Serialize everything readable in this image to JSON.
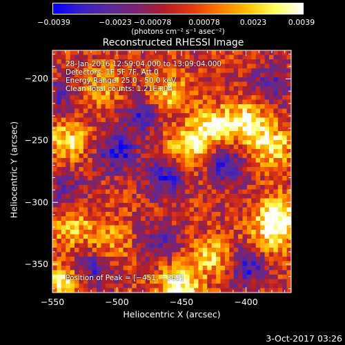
{
  "title": "Reconstructed RHESSI Image",
  "colorbar": {
    "ticks": [
      "−0.0039",
      "−0.0023",
      "−0.00078",
      "0.00078",
      "0.0023",
      "0.0039"
    ],
    "unit": "(photons cm⁻² s⁻¹ asec⁻²)"
  },
  "annotations": {
    "time_range": "28-Jan-2016 12:59:04.000 to 13:09:04.000",
    "detectors": "Detectors: 1F 5F 7F, Att 0",
    "energy": "Energy Range: 25.0 - 50.0 keV",
    "clean": "Clean    Total counts: 1.21E+04",
    "peak": "Position of Peak = [−451, −362]"
  },
  "timestamp": "3-Oct-2017 03:26",
  "chart_data": {
    "type": "heatmap",
    "title": "Reconstructed RHESSI Image",
    "xlabel": "Heliocentric X (arcsec)",
    "ylabel": "Heliocentric Y (arcsec)",
    "xlim": [
      -550,
      -365
    ],
    "ylim": [
      -373,
      -177
    ],
    "xticks": [
      -550,
      -500,
      -450,
      -400
    ],
    "xtick_labels": [
      "−550",
      "−500",
      "−450",
      "−400"
    ],
    "yticks": [
      -200,
      -250,
      -300,
      -350
    ],
    "ytick_labels": [
      "−200",
      "−250",
      "−300",
      "−350"
    ],
    "zlim": [
      -0.0039,
      0.0039
    ],
    "colormap": [
      "#0000ff",
      "#3a1ec8",
      "#5a2a9a",
      "#7a2470",
      "#b01e2a",
      "#e23a10",
      "#ff7a00",
      "#ffc000",
      "#ffff60",
      "#ffffff"
    ],
    "peak": [
      -451,
      -362
    ],
    "features": [
      {
        "x": -452,
        "y": -366,
        "value": 0.0039
      },
      {
        "x": -445,
        "y": -255,
        "value": 0.0033
      },
      {
        "x": -425,
        "y": -238,
        "value": 0.0032
      },
      {
        "x": -398,
        "y": -235,
        "value": 0.0036
      },
      {
        "x": -380,
        "y": -255,
        "value": 0.0031
      },
      {
        "x": -375,
        "y": -308,
        "value": 0.0033
      },
      {
        "x": -380,
        "y": -325,
        "value": 0.003
      },
      {
        "x": -540,
        "y": -365,
        "value": 0.0031
      },
      {
        "x": -538,
        "y": -250,
        "value": 0.0029
      },
      {
        "x": -460,
        "y": -212,
        "value": 0.0024
      },
      {
        "x": -510,
        "y": -205,
        "value": 0.0022
      },
      {
        "x": -425,
        "y": -345,
        "value": 0.0026
      },
      {
        "x": -505,
        "y": -330,
        "value": 0.0018
      },
      {
        "x": -535,
        "y": -320,
        "value": 0.0023
      },
      {
        "x": -415,
        "y": -270,
        "value": -0.0028
      },
      {
        "x": -500,
        "y": -260,
        "value": -0.0031
      },
      {
        "x": -462,
        "y": -280,
        "value": -0.0029
      },
      {
        "x": -482,
        "y": -230,
        "value": -0.0024
      },
      {
        "x": -400,
        "y": -352,
        "value": -0.0028
      },
      {
        "x": -520,
        "y": -355,
        "value": -0.0026
      },
      {
        "x": -380,
        "y": -205,
        "value": -0.0022
      },
      {
        "x": -468,
        "y": -332,
        "value": -0.0022
      },
      {
        "x": -538,
        "y": -290,
        "value": -0.0018
      },
      {
        "x": -548,
        "y": -215,
        "value": -0.002
      }
    ]
  }
}
